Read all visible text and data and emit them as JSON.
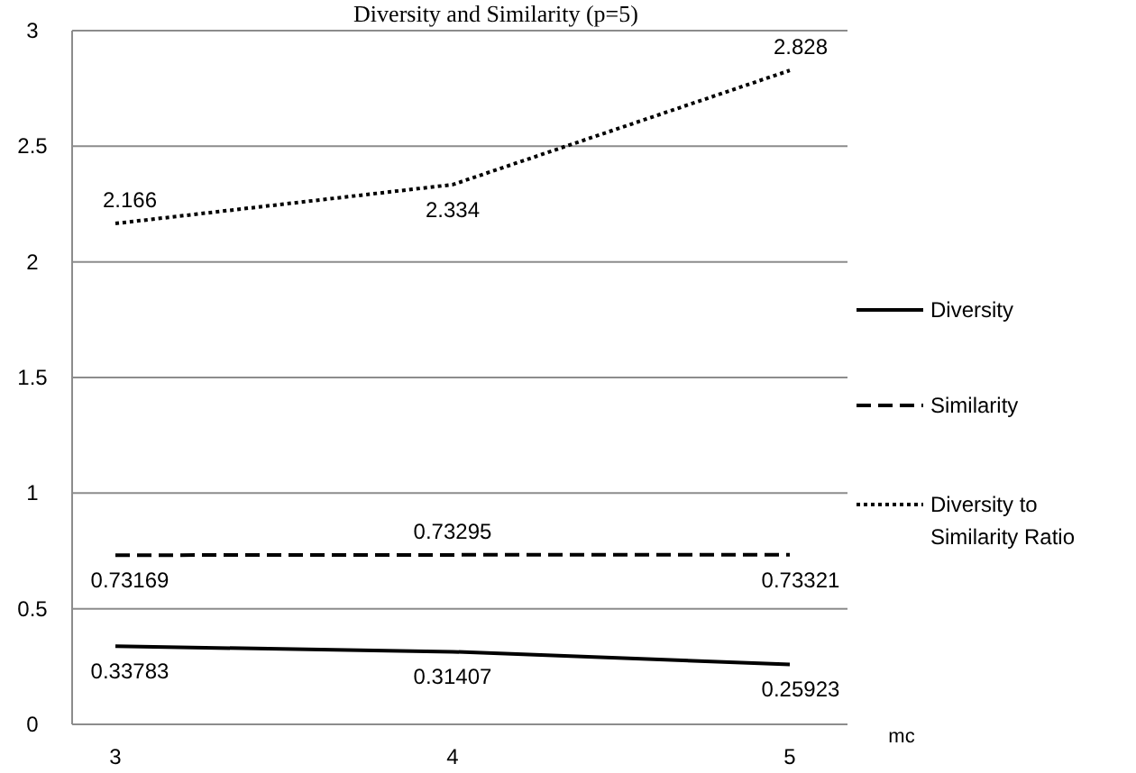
{
  "chart_data": {
    "type": "line",
    "title": "Diversity and Similarity  (p=5)",
    "xlabel": "mc",
    "categories": [
      "3",
      "4",
      "5"
    ],
    "series": [
      {
        "name": "Diversity",
        "color": "#000000",
        "line_style": "solid",
        "values": [
          0.33783,
          0.31407,
          0.25923
        ]
      },
      {
        "name": "Similarity",
        "color": "#000000",
        "line_style": "dashed",
        "values": [
          0.73169,
          0.73295,
          0.73321
        ]
      },
      {
        "name": "Diversity to Similarity Ratio",
        "color": "#000000",
        "line_style": "dotted",
        "values": [
          2.166,
          2.334,
          2.828
        ]
      }
    ],
    "ylim": [
      0,
      3
    ],
    "yticks": [
      0,
      0.5,
      1,
      1.5,
      2,
      2.5,
      3
    ],
    "grid": "y",
    "legend": "right",
    "marker": "none",
    "data_labels": true
  }
}
